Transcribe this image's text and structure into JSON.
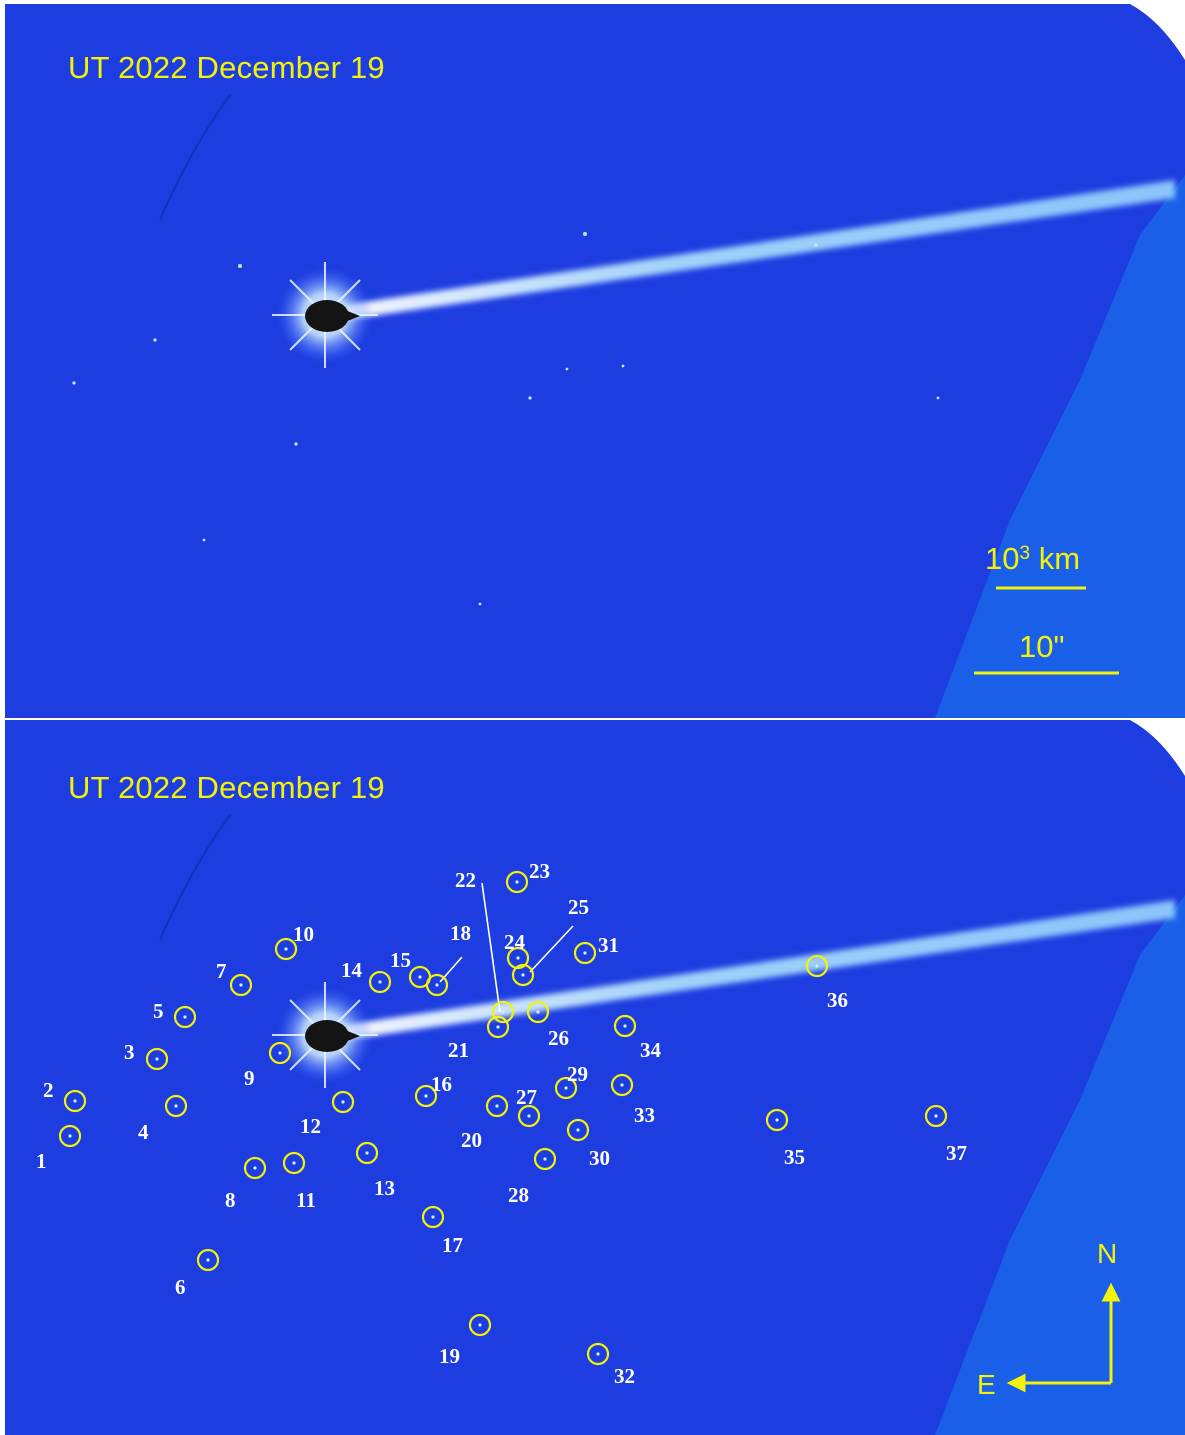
{
  "top_panel": {
    "date_label": "UT 2022 December 19",
    "scale_km_base": "10",
    "scale_km_exp": "3",
    "scale_km_unit": "km",
    "scale_arcsec": "10\""
  },
  "bottom_panel": {
    "date_label": "UT 2022 December 19",
    "markers": [
      {
        "id": "1"
      },
      {
        "id": "2"
      },
      {
        "id": "3"
      },
      {
        "id": "4"
      },
      {
        "id": "5"
      },
      {
        "id": "6"
      },
      {
        "id": "7"
      },
      {
        "id": "8"
      },
      {
        "id": "9"
      },
      {
        "id": "10"
      },
      {
        "id": "11"
      },
      {
        "id": "12"
      },
      {
        "id": "13"
      },
      {
        "id": "14"
      },
      {
        "id": "15"
      },
      {
        "id": "16"
      },
      {
        "id": "17"
      },
      {
        "id": "18"
      },
      {
        "id": "19"
      },
      {
        "id": "20"
      },
      {
        "id": "21"
      },
      {
        "id": "22"
      },
      {
        "id": "23"
      },
      {
        "id": "24"
      },
      {
        "id": "25"
      },
      {
        "id": "26"
      },
      {
        "id": "27"
      },
      {
        "id": "28"
      },
      {
        "id": "29"
      },
      {
        "id": "30"
      },
      {
        "id": "31"
      },
      {
        "id": "32"
      },
      {
        "id": "33"
      },
      {
        "id": "34"
      },
      {
        "id": "35"
      },
      {
        "id": "36"
      },
      {
        "id": "37"
      }
    ],
    "compass": {
      "north": "N",
      "east": "E"
    }
  },
  "colors": {
    "sky": "#1f3fe0",
    "tail": "#b8ecff",
    "annotation": "#f2f20a",
    "label": "#ffffff"
  }
}
